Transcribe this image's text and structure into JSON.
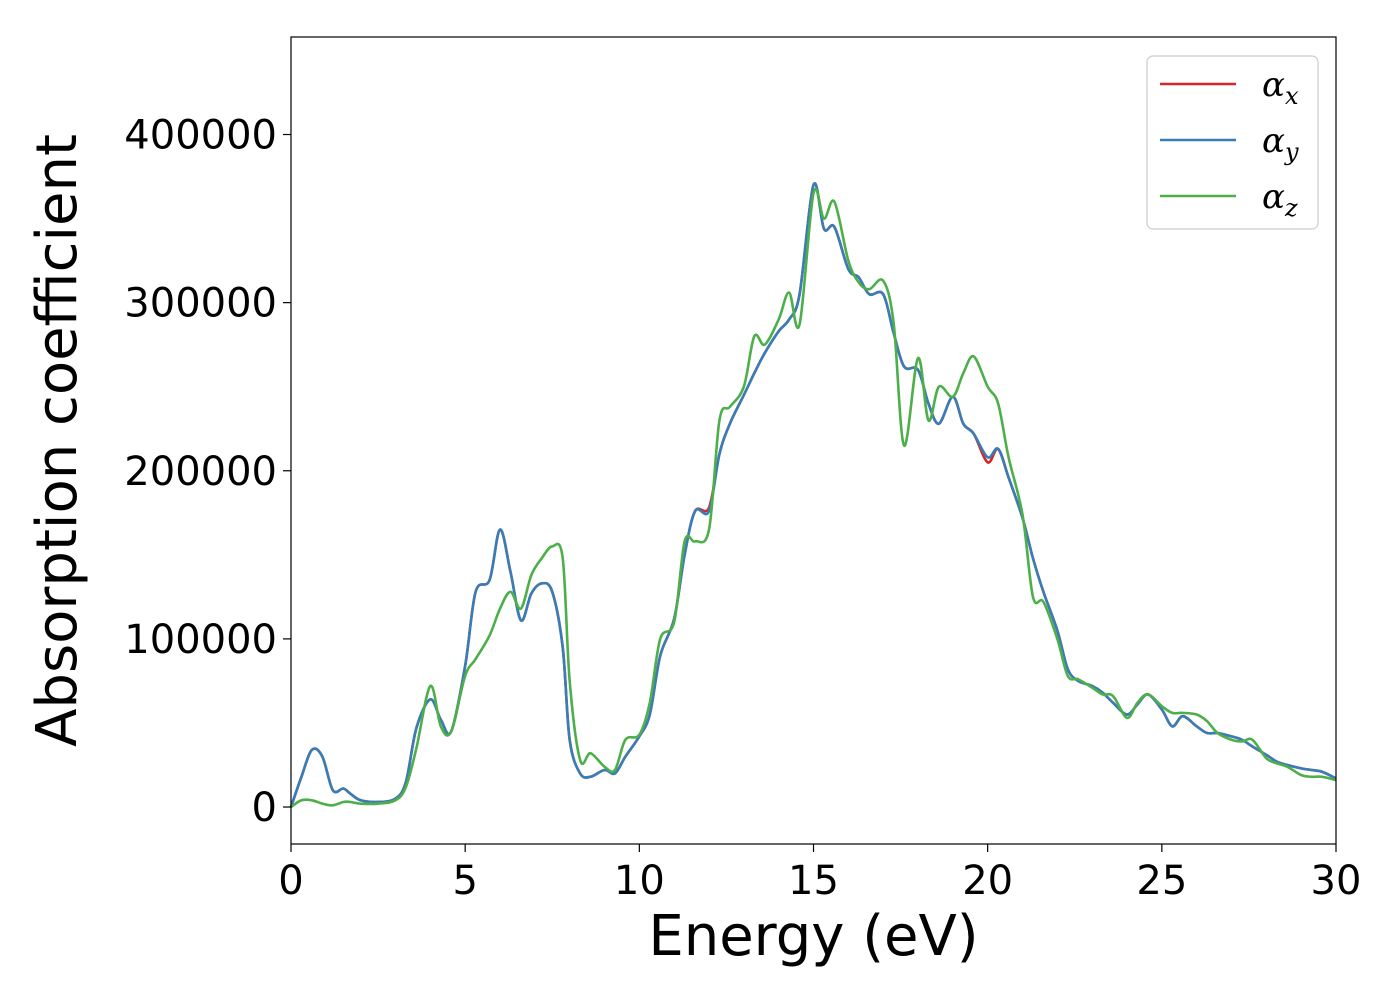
{
  "chart_data": {
    "type": "line",
    "xlabel": "Energy (eV)",
    "ylabel": "Absorption coefficient",
    "xlim": [
      0,
      30
    ],
    "ylim": [
      -22000,
      458000
    ],
    "x_ticks": [
      "0",
      "5",
      "10",
      "15",
      "20",
      "25",
      "30"
    ],
    "y_ticks": [
      "0",
      "100000",
      "200000",
      "300000",
      "400000"
    ],
    "grid": false,
    "legend_position": "top-right",
    "series": [
      {
        "name": "αx",
        "label_base": "α",
        "label_sub": "x",
        "color": "#d62728",
        "x": [
          0,
          0.3,
          0.6,
          0.9,
          1.2,
          1.5,
          1.7,
          2.0,
          2.5,
          3.0,
          3.3,
          3.6,
          4.0,
          4.3,
          4.6,
          5.0,
          5.3,
          5.7,
          6.0,
          6.3,
          6.6,
          6.9,
          7.2,
          7.5,
          7.8,
          8.0,
          8.3,
          8.6,
          9.0,
          9.3,
          9.6,
          10.0,
          10.3,
          10.6,
          11.0,
          11.3,
          11.6,
          12.0,
          12.3,
          12.6,
          13.0,
          13.3,
          13.6,
          14.0,
          14.3,
          14.6,
          15.0,
          15.3,
          15.6,
          16.0,
          16.3,
          16.6,
          17.0,
          17.3,
          17.6,
          18.0,
          18.3,
          18.6,
          19.0,
          19.3,
          19.6,
          20.0,
          20.3,
          20.6,
          21.0,
          21.3,
          21.6,
          22.0,
          22.3,
          22.6,
          23.0,
          23.3,
          23.6,
          24.0,
          24.3,
          24.6,
          25.0,
          25.3,
          25.6,
          26.0,
          26.3,
          26.6,
          27.0,
          27.3,
          27.6,
          28.0,
          28.3,
          28.6,
          29.0,
          29.3,
          29.6,
          30.0
        ],
        "y": [
          0,
          18000,
          34000,
          30000,
          10000,
          11000,
          8000,
          4000,
          3000,
          5000,
          15000,
          47000,
          64000,
          52000,
          45000,
          84000,
          128000,
          135000,
          165000,
          140000,
          111000,
          127000,
          133000,
          128000,
          95000,
          40000,
          20000,
          18000,
          22000,
          20000,
          30000,
          42000,
          55000,
          90000,
          112000,
          150000,
          176000,
          178000,
          210000,
          228000,
          245000,
          258000,
          270000,
          283000,
          290000,
          305000,
          370000,
          344000,
          345000,
          320000,
          315000,
          305000,
          305000,
          282000,
          262000,
          260000,
          240000,
          228000,
          244000,
          228000,
          222000,
          205000,
          213000,
          196000,
          172000,
          148000,
          128000,
          105000,
          82000,
          75000,
          72000,
          68000,
          62000,
          55000,
          61000,
          67000,
          58000,
          48000,
          54000,
          48000,
          44000,
          44000,
          42000,
          40000,
          36000,
          31000,
          27000,
          25000,
          23000,
          22000,
          21000,
          17000
        ]
      },
      {
        "name": "αy",
        "label_base": "α",
        "label_sub": "y",
        "color": "#377eb8",
        "x": [
          0,
          0.3,
          0.6,
          0.9,
          1.2,
          1.5,
          1.7,
          2.0,
          2.5,
          3.0,
          3.3,
          3.6,
          4.0,
          4.3,
          4.6,
          5.0,
          5.3,
          5.7,
          6.0,
          6.3,
          6.6,
          6.9,
          7.2,
          7.5,
          7.8,
          8.0,
          8.3,
          8.6,
          9.0,
          9.3,
          9.6,
          10.0,
          10.3,
          10.6,
          11.0,
          11.3,
          11.6,
          12.0,
          12.3,
          12.6,
          13.0,
          13.3,
          13.6,
          14.0,
          14.3,
          14.6,
          15.0,
          15.3,
          15.6,
          16.0,
          16.3,
          16.6,
          17.0,
          17.3,
          17.6,
          18.0,
          18.3,
          18.6,
          19.0,
          19.3,
          19.6,
          20.0,
          20.3,
          20.6,
          21.0,
          21.3,
          21.6,
          22.0,
          22.3,
          22.6,
          23.0,
          23.3,
          23.6,
          24.0,
          24.3,
          24.6,
          25.0,
          25.3,
          25.6,
          26.0,
          26.3,
          26.6,
          27.0,
          27.3,
          27.6,
          28.0,
          28.3,
          28.6,
          29.0,
          29.3,
          29.6,
          30.0
        ],
        "y": [
          0,
          18000,
          34000,
          30000,
          10000,
          11000,
          8000,
          4000,
          3000,
          5000,
          15000,
          47000,
          64000,
          52000,
          45000,
          84000,
          128000,
          135000,
          165000,
          140000,
          111000,
          127000,
          133000,
          128000,
          95000,
          40000,
          20000,
          18000,
          22000,
          20000,
          30000,
          42000,
          55000,
          90000,
          112000,
          150000,
          176000,
          176000,
          210000,
          228000,
          245000,
          258000,
          270000,
          283000,
          290000,
          305000,
          370000,
          344000,
          345000,
          320000,
          315000,
          305000,
          305000,
          282000,
          262000,
          260000,
          240000,
          228000,
          244000,
          228000,
          222000,
          208000,
          213000,
          196000,
          172000,
          148000,
          128000,
          105000,
          82000,
          75000,
          72000,
          68000,
          62000,
          55000,
          61000,
          67000,
          58000,
          48000,
          54000,
          48000,
          44000,
          44000,
          42000,
          40000,
          36000,
          31000,
          27000,
          25000,
          23000,
          22000,
          21000,
          17000
        ]
      },
      {
        "name": "αz",
        "label_base": "α",
        "label_sub": "z",
        "color": "#4daf4a",
        "x": [
          0,
          0.3,
          0.6,
          0.9,
          1.2,
          1.5,
          1.7,
          2.0,
          2.5,
          3.0,
          3.3,
          3.6,
          4.0,
          4.3,
          4.6,
          5.0,
          5.3,
          5.7,
          6.0,
          6.3,
          6.6,
          6.9,
          7.2,
          7.5,
          7.8,
          8.0,
          8.3,
          8.6,
          9.0,
          9.3,
          9.6,
          10.0,
          10.3,
          10.6,
          11.0,
          11.3,
          11.6,
          12.0,
          12.3,
          12.6,
          13.0,
          13.3,
          13.6,
          14.0,
          14.3,
          14.6,
          15.0,
          15.3,
          15.6,
          16.0,
          16.3,
          16.6,
          17.0,
          17.3,
          17.6,
          18.0,
          18.3,
          18.6,
          19.0,
          19.3,
          19.6,
          20.0,
          20.3,
          20.6,
          21.0,
          21.3,
          21.6,
          22.0,
          22.3,
          22.6,
          23.0,
          23.3,
          23.6,
          24.0,
          24.3,
          24.6,
          25.0,
          25.3,
          25.6,
          26.0,
          26.3,
          26.6,
          27.0,
          27.3,
          27.6,
          28.0,
          28.3,
          28.6,
          29.0,
          29.3,
          29.6,
          30.0
        ],
        "y": [
          0,
          4000,
          4000,
          2000,
          1000,
          3000,
          3000,
          2000,
          2000,
          4000,
          12000,
          35000,
          72000,
          48000,
          45000,
          78000,
          88000,
          102000,
          118000,
          128000,
          118000,
          138000,
          148000,
          155000,
          148000,
          75000,
          28000,
          32000,
          24000,
          22000,
          40000,
          43000,
          62000,
          100000,
          110000,
          158000,
          158000,
          165000,
          230000,
          238000,
          250000,
          280000,
          275000,
          290000,
          306000,
          287000,
          365000,
          350000,
          360000,
          325000,
          312000,
          308000,
          313000,
          288000,
          215000,
          267000,
          230000,
          250000,
          244000,
          258000,
          268000,
          250000,
          240000,
          208000,
          174000,
          125000,
          122000,
          100000,
          78000,
          76000,
          71000,
          67000,
          66000,
          53000,
          62000,
          67000,
          60000,
          56000,
          56000,
          55000,
          51000,
          44000,
          40000,
          39000,
          40000,
          29000,
          26000,
          24000,
          19000,
          18000,
          18000,
          16000
        ]
      }
    ]
  }
}
